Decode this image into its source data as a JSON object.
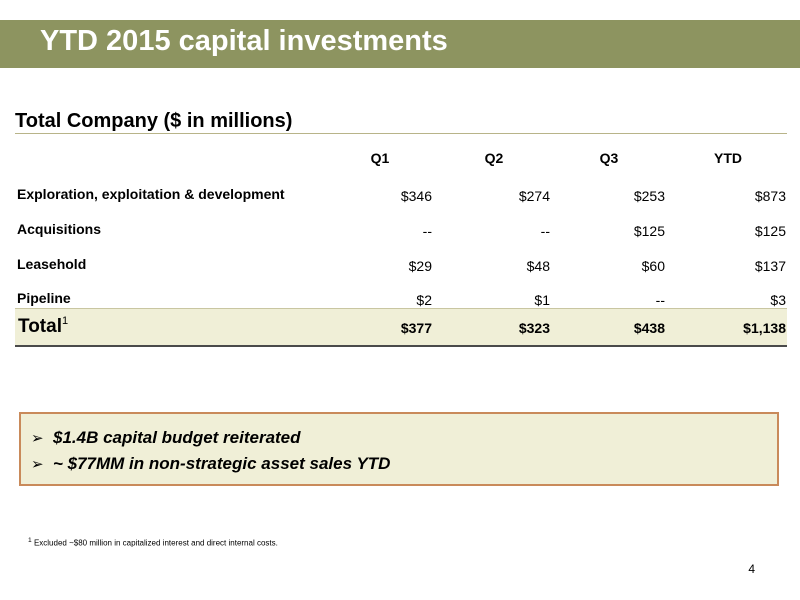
{
  "header": {
    "title": "YTD 2015 capital investments"
  },
  "section_title": "Total Company ($ in millions)",
  "table": {
    "columns": [
      "Q1",
      "Q2",
      "Q3",
      "YTD"
    ],
    "rows": [
      {
        "label": "Exploration, exploitation & development",
        "values": [
          "$346",
          "$274",
          "$253",
          "$873"
        ]
      },
      {
        "label": "Acquisitions",
        "values": [
          "--",
          "--",
          "$125",
          "$125"
        ]
      },
      {
        "label": "Leasehold",
        "values": [
          "$29",
          "$48",
          "$60",
          "$137"
        ]
      },
      {
        "label": "Pipeline",
        "values": [
          "$2",
          "$1",
          "--",
          "$3"
        ]
      }
    ],
    "total": {
      "label": "Total",
      "footnote_marker": "1",
      "values": [
        "$377",
        "$323",
        "$438",
        "$1,138"
      ]
    }
  },
  "callout": {
    "bullet_glyph": "➢",
    "items": [
      "$1.4B capital budget reiterated",
      "~ $77MM in non-strategic asset sales YTD"
    ]
  },
  "footnote": {
    "marker": "1",
    "text": "Excluded ~$80 million in capitalized interest and direct internal costs."
  },
  "page_number": "4",
  "colors": {
    "title_bar": "#8d9460",
    "total_row_bg": "#f0efd7",
    "callout_border": "#c98a5a"
  }
}
